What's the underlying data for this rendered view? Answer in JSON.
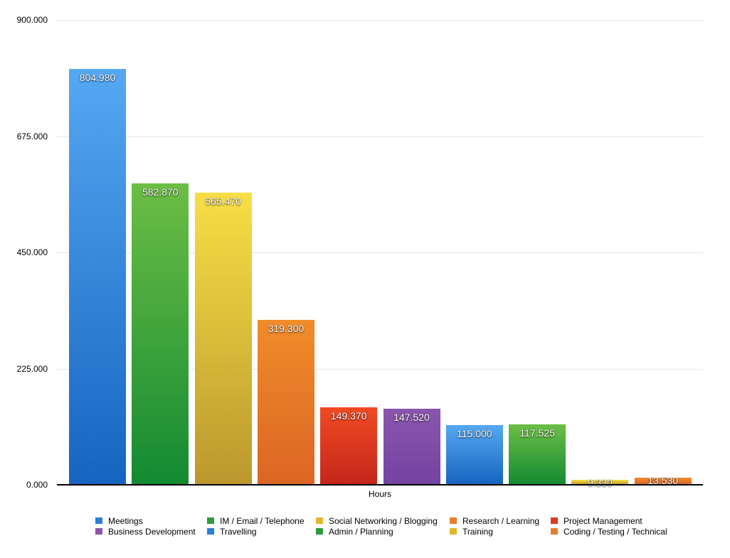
{
  "chart_data": {
    "type": "bar",
    "title": "",
    "xlabel": "Hours",
    "ylabel": "",
    "ylim": [
      0,
      900
    ],
    "yticks": [
      "0.000",
      "225.000",
      "450.000",
      "675.000",
      "900.000"
    ],
    "grid": true,
    "legend_position": "bottom",
    "categories": [
      "Meetings",
      "IM / Email / Telephone",
      "Social Networking / Blogging",
      "Research / Learning",
      "Project Management",
      "Business Development",
      "Travelling",
      "Admin / Planning",
      "Training",
      "Coding / Testing / Technical"
    ],
    "values": [
      804.98,
      582.87,
      565.47,
      319.3,
      149.37,
      147.52,
      115.0,
      117.525,
      9.33,
      13.53
    ],
    "value_labels": [
      "804.980",
      "582.870",
      "565.470",
      "319.300",
      "149.370",
      "147.520",
      "115.000",
      "117.525",
      "9.330",
      "13.530"
    ],
    "colors": [
      {
        "top": "#55a8f2",
        "bottom": "#1565c0"
      },
      {
        "top": "#6cbe45",
        "bottom": "#138a32"
      },
      {
        "top": "#f8de45",
        "bottom": "#bc982d"
      },
      {
        "top": "#f08c2a",
        "bottom": "#dc6524"
      },
      {
        "top": "#f04a23",
        "bottom": "#c4261b"
      },
      {
        "top": "#8a55ad",
        "bottom": "#7443a0"
      },
      {
        "top": "#55a8f2",
        "bottom": "#1565c0"
      },
      {
        "top": "#6cbe45",
        "bottom": "#138a32"
      },
      {
        "top": "#f8de45",
        "bottom": "#bc982d"
      },
      {
        "top": "#f08c2a",
        "bottom": "#dc6524"
      }
    ]
  },
  "legend": {
    "items": [
      {
        "label": "Meetings",
        "color": "#2b7fd6"
      },
      {
        "label": "IM / Email / Telephone",
        "color": "#2d9b3a"
      },
      {
        "label": "Social Networking / Blogging",
        "color": "#e0b82e"
      },
      {
        "label": "Research / Learning",
        "color": "#ea7d2a"
      },
      {
        "label": "Project Management",
        "color": "#de3a1f"
      },
      {
        "label": "Business Development",
        "color": "#8a55ad"
      },
      {
        "label": "Travelling",
        "color": "#2b7fd6"
      },
      {
        "label": "Admin / Planning",
        "color": "#2d9b3a"
      },
      {
        "label": "Training",
        "color": "#e0b82e"
      },
      {
        "label": "Coding / Testing / Technical",
        "color": "#ea7d2a"
      }
    ]
  }
}
